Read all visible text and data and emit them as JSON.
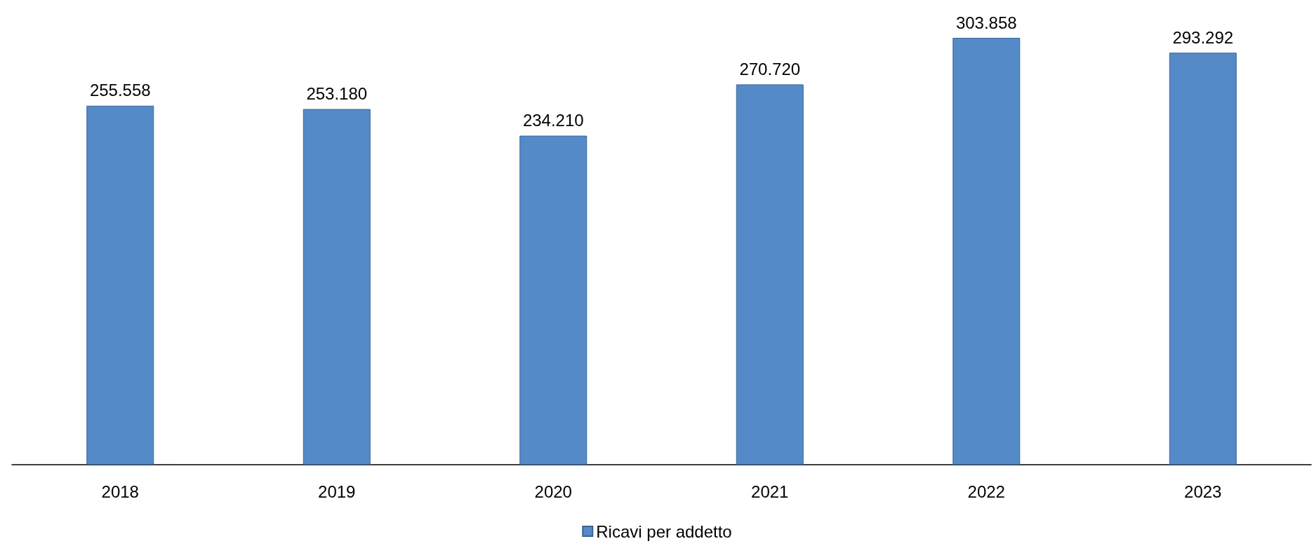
{
  "chart_data": {
    "type": "bar",
    "categories": [
      "2018",
      "2019",
      "2020",
      "2021",
      "2022",
      "2023"
    ],
    "series": [
      {
        "name": "Ricavi per addetto",
        "color": "#558ac9",
        "values": [
          255558,
          253180,
          234210,
          270720,
          303858,
          293292
        ],
        "value_labels": [
          "255.558",
          "253.180",
          "234.210",
          "270.720",
          "303.858",
          "293.292"
        ]
      }
    ],
    "legend": "bottom"
  }
}
